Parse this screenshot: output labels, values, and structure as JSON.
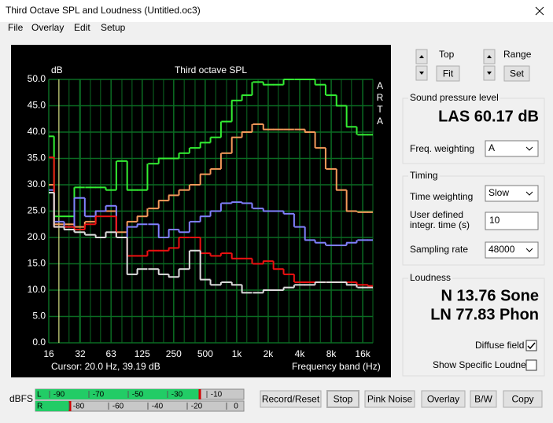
{
  "window": {
    "title": "Third Octave SPL and Loudness (Untitled.oc3)"
  },
  "menu": [
    "File",
    "Overlay",
    "Edit",
    "Setup"
  ],
  "chart_data": {
    "type": "line",
    "title": "Third octave SPL",
    "y_label": "dB",
    "x_label": "Frequency band (Hz)",
    "side_label": "ARTA",
    "cursor": "Cursor:  20.0 Hz, 39.19 dB",
    "x": [
      16,
      20,
      25,
      31.5,
      40,
      50,
      63,
      80,
      100,
      125,
      160,
      200,
      250,
      315,
      400,
      500,
      630,
      800,
      1000,
      1250,
      1600,
      2000,
      2500,
      3150,
      4000,
      5000,
      6300,
      8000,
      10000,
      12500,
      16000,
      20000
    ],
    "x_scale": "log",
    "xlim": [
      16,
      20000
    ],
    "xticks": [
      16,
      32,
      63,
      125,
      250,
      500,
      {
        "value": 1000,
        "label": "1k"
      },
      {
        "value": 2000,
        "label": "2k"
      },
      {
        "value": 4000,
        "label": "4k"
      },
      {
        "value": 8000,
        "label": "8k"
      },
      {
        "value": 16000,
        "label": "16k"
      }
    ],
    "ylim": [
      0,
      50
    ],
    "yticks": [
      {
        "value": 0,
        "label": "0.0"
      },
      {
        "value": 5,
        "label": "5.0"
      },
      {
        "value": 10,
        "label": "10.0"
      },
      {
        "value": 15,
        "label": "15.0"
      },
      {
        "value": 20,
        "label": "20.0"
      },
      {
        "value": 25,
        "label": "25.0"
      },
      {
        "value": 30,
        "label": "30.0"
      },
      {
        "value": 35,
        "label": "35.0"
      },
      {
        "value": 40,
        "label": "40.0"
      },
      {
        "value": 45,
        "label": "45.0"
      },
      {
        "value": 50,
        "label": "50.0"
      }
    ],
    "grid": true,
    "background": "#000000",
    "grid_color": "#0b6b22",
    "series": [
      {
        "color": "#33ee33",
        "values": [
          39.2,
          24,
          24,
          29.5,
          29.5,
          29.5,
          29,
          34.5,
          29,
          29,
          34,
          35,
          35,
          36,
          37,
          38,
          39,
          42,
          46,
          47,
          49.5,
          49,
          49,
          50,
          50,
          50,
          49,
          47,
          45,
          41,
          39.5,
          39.5
        ]
      },
      {
        "color": "#f59a5a",
        "values": [
          30,
          22.5,
          22.5,
          22,
          23,
          25,
          25,
          21,
          23,
          24,
          25.5,
          27,
          28,
          29,
          30,
          32,
          33,
          36,
          39,
          40,
          41.5,
          40.5,
          40.5,
          40.5,
          40.5,
          40,
          37,
          33,
          29,
          25,
          24.8,
          24.8
        ]
      },
      {
        "color": "#8080ff",
        "values": [
          29,
          23,
          22,
          27.5,
          24,
          25,
          26,
          20,
          22,
          22.5,
          22.5,
          20,
          21.5,
          21,
          23,
          24,
          25,
          26.5,
          26.7,
          26.5,
          25.5,
          25,
          25,
          24.5,
          22,
          19.5,
          19,
          18.5,
          18.5,
          19,
          19.5,
          19.5
        ]
      },
      {
        "color": "#ee1111",
        "values": [
          35.2,
          22,
          22,
          21.5,
          22.5,
          24,
          24,
          20,
          16.5,
          16.5,
          17.5,
          17.5,
          18,
          20,
          20,
          17,
          16.5,
          17,
          16,
          16,
          15,
          15.5,
          14,
          13,
          11.5,
          11.5,
          11.5,
          11.5,
          11.5,
          11.5,
          11,
          10.8
        ]
      },
      {
        "color": "#dddddd",
        "values": [
          28.5,
          22,
          21.5,
          21,
          20.5,
          20,
          21,
          20,
          13,
          14,
          14,
          13,
          12.5,
          14,
          17.5,
          12,
          11,
          11.5,
          11,
          9.5,
          9.5,
          10,
          10,
          10.5,
          11,
          11,
          11.5,
          11.5,
          11.5,
          11,
          10.5,
          10.5
        ]
      }
    ]
  },
  "controls": {
    "top": "Top",
    "fit": "Fit",
    "range": "Range",
    "set": "Set"
  },
  "spl": {
    "group": "Sound pressure level",
    "reading": "LAS 60.17 dB",
    "weighting_label": "Freq. weighting",
    "weighting": "A"
  },
  "timing": {
    "group": "Timing",
    "time_weighting_label": "Time weighting",
    "time_weighting": "Slow",
    "integr_label_1": "User defined",
    "integr_label_2": "integr. time (s)",
    "integr_time": "10",
    "sampling_label": "Sampling rate",
    "sampling_rate": "48000"
  },
  "loudness": {
    "group": "Loudness",
    "n": "N 13.76 Sone",
    "ln": "LN 77.83 Phon",
    "diffuse": "Diffuse field",
    "diffuse_checked": true,
    "specific": "Show Specific Loudness",
    "specific_checked": false
  },
  "meter": {
    "label": "dBFS",
    "left_channel": "L",
    "right_channel": "R",
    "left_ticks": [
      -90,
      -70,
      -50,
      -30,
      -10
    ],
    "right_ticks": [
      -80,
      -60,
      -40,
      -20,
      0
    ],
    "left_level": -19,
    "right_level": -85
  },
  "buttons": [
    "Record/Reset",
    "Stop",
    "Pink Noise",
    "Overlay",
    "B/W",
    "Copy"
  ]
}
